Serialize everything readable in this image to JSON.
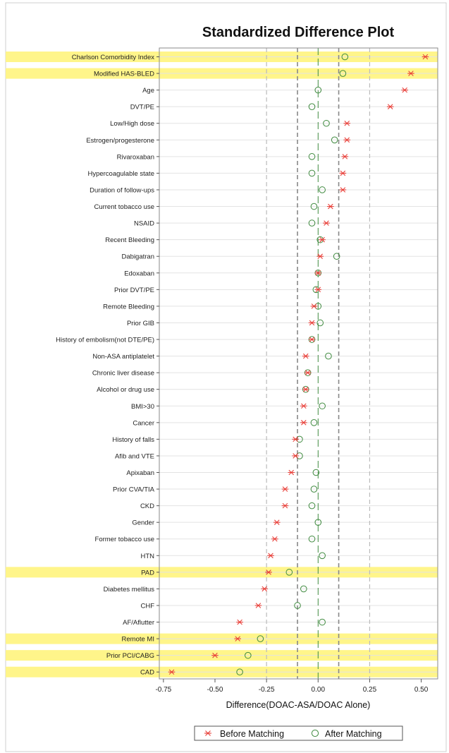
{
  "chart_data": {
    "type": "scatter",
    "title": "Standardized Difference Plot",
    "xlabel": "Difference(DOAC-ASA/DOAC Alone)",
    "ylabel": "",
    "xlim": [
      -0.77,
      0.58
    ],
    "xticks": [
      "-0.75",
      "-0.50",
      "-0.25",
      "0.00",
      "0.25",
      "0.50"
    ],
    "xtick_values": [
      -0.75,
      -0.5,
      -0.25,
      0.0,
      0.25,
      0.5
    ],
    "reference_lines": {
      "dashed_dark": [
        -0.1,
        0.1
      ],
      "dashed_light": [
        -0.25,
        0.25
      ],
      "center": 0.0
    },
    "highlight_color": "#fff58a",
    "legend": {
      "placement": "bottom",
      "before_label": "Before Matching",
      "after_label": "After Matching"
    },
    "colors": {
      "before": "#e8403a",
      "after": "#3f8a3f",
      "ref_dark": "#888888",
      "ref_light": "#bbbbbb",
      "grid": "#e3e3e3"
    },
    "categories": [
      "Charlson Comorbidity Index",
      "Modified HAS-BLED",
      "Age",
      "DVT/PE",
      "Low/High dose",
      "Estrogen/progesterone",
      "Rivaroxaban",
      "Hypercoagulable state",
      "Duration of follow-ups",
      "Current tobacco use",
      "NSAID",
      "Recent Bleeding",
      "Dabigatran",
      "Edoxaban",
      "Prior DVT/PE",
      "Remote Bleeding",
      "Prior GIB",
      "History of embolism(not DTE/PE)",
      "Non-ASA antiplatelet",
      "Chronic liver disease",
      "Alcohol or drug use",
      "BMI>30",
      "Cancer",
      "History of falls",
      "Afib and VTE",
      "Apixaban",
      "Prior CVA/TIA",
      "CKD",
      "Gender",
      "Former tobacco use",
      "HTN",
      "PAD",
      "Diabetes mellitus",
      "CHF",
      "AF/Aflutter",
      "Remote MI",
      "Prior PCI/CABG",
      "CAD"
    ],
    "highlighted": [
      "Charlson Comorbidity Index",
      "Modified HAS-BLED",
      "PAD",
      "Remote MI",
      "Prior PCI/CABG",
      "CAD"
    ],
    "series": [
      {
        "name": "Before Matching",
        "marker": "asterisk",
        "values": [
          0.52,
          0.45,
          0.42,
          0.35,
          0.14,
          0.14,
          0.13,
          0.12,
          0.12,
          0.06,
          0.04,
          0.02,
          0.01,
          0.0,
          0.0,
          -0.02,
          -0.03,
          -0.03,
          -0.06,
          -0.05,
          -0.06,
          -0.07,
          -0.07,
          -0.11,
          -0.11,
          -0.13,
          -0.16,
          -0.16,
          -0.2,
          -0.21,
          -0.23,
          -0.24,
          -0.26,
          -0.29,
          -0.38,
          -0.39,
          -0.5,
          -0.71
        ]
      },
      {
        "name": "After Matching",
        "marker": "circle",
        "values": [
          0.13,
          0.12,
          0.0,
          -0.03,
          0.04,
          0.08,
          -0.03,
          -0.03,
          0.02,
          -0.02,
          -0.03,
          0.01,
          0.09,
          0.0,
          -0.01,
          0.0,
          0.01,
          -0.03,
          0.05,
          -0.05,
          -0.06,
          0.02,
          -0.02,
          -0.09,
          -0.09,
          -0.01,
          -0.02,
          -0.03,
          0.0,
          -0.03,
          0.02,
          -0.14,
          -0.07,
          -0.1,
          0.02,
          -0.28,
          -0.34,
          -0.38
        ]
      }
    ]
  }
}
